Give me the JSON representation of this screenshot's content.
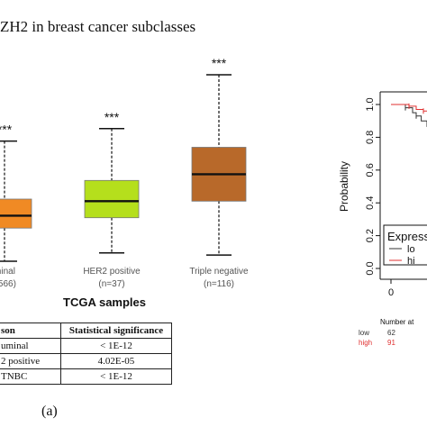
{
  "left_panel": {
    "title": "ZH2 in breast cancer subclasses",
    "section_title": "TCGA samples",
    "panel_label": "(a)",
    "table": {
      "headers": [
        "son",
        "Statistical significance"
      ],
      "rows": [
        [
          "uminal",
          "< 1E-12"
        ],
        [
          "2 positive",
          "4.02E-05"
        ],
        [
          "TNBC",
          "< 1E-12"
        ]
      ]
    }
  },
  "chart_data": [
    {
      "type": "box",
      "title": "ZH2 in breast cancer subclasses",
      "xlabel": "TCGA samples",
      "ylabel": "",
      "categories": [
        "minal",
        "HER2 positive",
        "Triple negative"
      ],
      "sample_labels": [
        "=566)",
        "(n=37)",
        "(n=116)"
      ],
      "significance": [
        "***",
        "***",
        "***"
      ],
      "ylim": [
        0,
        10
      ],
      "series": [
        {
          "min": 0.0,
          "q1": 1.6,
          "median": 2.2,
          "q3": 3.0,
          "max": 5.8
        },
        {
          "min": 0.4,
          "q1": 2.1,
          "median": 2.9,
          "q3": 3.9,
          "max": 6.4
        },
        {
          "min": 0.3,
          "q1": 2.9,
          "median": 4.2,
          "q3": 5.5,
          "max": 9.0
        }
      ],
      "colors": [
        "#f08a24",
        "#b5df1c",
        "#b8692a"
      ]
    },
    {
      "type": "line",
      "title": "",
      "ylabel": "Probability",
      "xlabel": "",
      "ylim": [
        0,
        1.0
      ],
      "y_ticks": [
        "0.0",
        "0.2",
        "0.4",
        "0.6",
        "0.8",
        "1.0"
      ],
      "x_ticks": [
        "0"
      ],
      "legend_title": "Express",
      "legend_items": [
        "lo",
        "hi"
      ],
      "series": [
        {
          "name": "lo",
          "color": "#333333",
          "x": [
            0,
            0.1,
            0.2,
            0.3,
            0.35,
            0.42,
            0.5,
            0.6,
            0.7
          ],
          "y": [
            1.0,
            1.0,
            0.98,
            0.95,
            0.93,
            0.9,
            0.88,
            0.86,
            0.85
          ]
        },
        {
          "name": "hi",
          "color": "#e03131",
          "x": [
            0,
            0.15,
            0.25,
            0.35,
            0.45,
            0.55,
            0.65
          ],
          "y": [
            1.0,
            1.0,
            0.99,
            0.97,
            0.96,
            0.95,
            0.95
          ]
        }
      ],
      "risk_table": {
        "header": "Number at",
        "rows": [
          {
            "label": "low",
            "value": "62",
            "color": "#333333"
          },
          {
            "label": "high",
            "value": "91",
            "color": "#e03131"
          }
        ]
      }
    }
  ]
}
